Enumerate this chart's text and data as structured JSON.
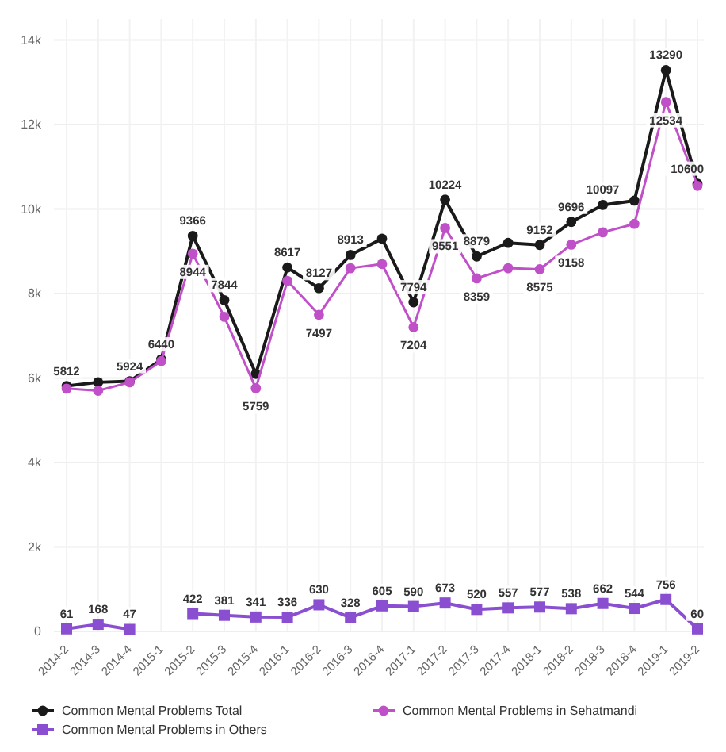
{
  "chart_data": {
    "type": "line",
    "categories": [
      "2014-2",
      "2014-3",
      "2014-4",
      "2015-1",
      "2015-2",
      "2015-3",
      "2015-4",
      "2016-1",
      "2016-2",
      "2016-3",
      "2016-4",
      "2017-1",
      "2017-2",
      "2017-3",
      "2017-4",
      "2018-1",
      "2018-2",
      "2018-3",
      "2018-4",
      "2019-1",
      "2019-2"
    ],
    "series": [
      {
        "name": "Common Mental Problems Total",
        "color": "#1a1a1a",
        "marker": "circle",
        "values": [
          5812,
          5900,
          5924,
          6440,
          9366,
          7844,
          6100,
          8617,
          8127,
          8913,
          9300,
          7794,
          10224,
          8879,
          9200,
          9152,
          9696,
          10097,
          10200,
          13290,
          10600
        ],
        "value_labels": [
          "5812",
          null,
          "5924",
          "6440",
          "9366",
          "7844",
          null,
          "8617",
          "8127",
          "8913",
          null,
          "7794",
          "10224",
          "8879",
          null,
          "9152",
          "9696",
          "10097",
          null,
          "13290",
          "10600"
        ]
      },
      {
        "name": "Common Mental Problems in Others",
        "color": "#8a4fd0",
        "marker": "square",
        "values": [
          61,
          168,
          47,
          null,
          422,
          381,
          341,
          336,
          630,
          328,
          605,
          590,
          673,
          520,
          557,
          577,
          538,
          662,
          544,
          756,
          60
        ],
        "value_labels": [
          "61",
          "168",
          "47",
          null,
          "422",
          "381",
          "341",
          "336",
          "630",
          "328",
          "605",
          "590",
          "673",
          "520",
          "557",
          "577",
          "538",
          "662",
          "544",
          "756",
          "60"
        ]
      },
      {
        "name": "Common Mental Problems in Sehatmandi",
        "color": "#c050c8",
        "marker": "circle",
        "values": [
          5750,
          5700,
          5900,
          6400,
          8944,
          7450,
          5759,
          8300,
          7497,
          8600,
          8700,
          7204,
          9551,
          8359,
          8600,
          8575,
          9158,
          9450,
          9650,
          12534,
          10550
        ],
        "value_labels": [
          null,
          null,
          null,
          null,
          "8944",
          null,
          "5759",
          null,
          "7497",
          null,
          null,
          "7204",
          "9551",
          "8359",
          null,
          "8575",
          "9158",
          null,
          null,
          "12534",
          null
        ]
      }
    ],
    "ylim": [
      0,
      14500
    ],
    "yticks": [
      {
        "value": 0,
        "label": "0"
      },
      {
        "value": 2000,
        "label": "2k"
      },
      {
        "value": 4000,
        "label": "4k"
      },
      {
        "value": 6000,
        "label": "6k"
      },
      {
        "value": 8000,
        "label": "8k"
      },
      {
        "value": 10000,
        "label": "10k"
      },
      {
        "value": 12000,
        "label": "12k"
      },
      {
        "value": 14000,
        "label": "14k"
      }
    ],
    "grid": true,
    "legend": "bottom",
    "line_style": "solid"
  }
}
